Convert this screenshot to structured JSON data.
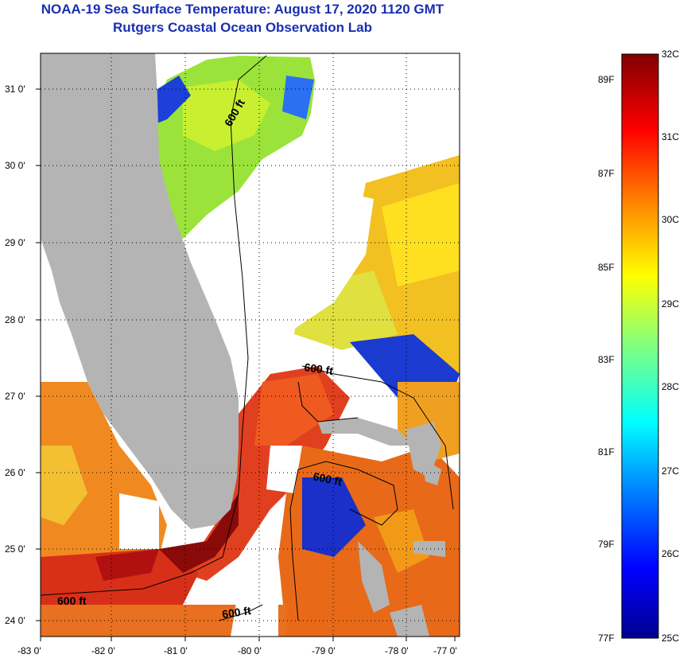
{
  "title": {
    "line1": "NOAA-19 Sea Surface Temperature:  August 17, 2020 1120 GMT",
    "line2": "Rutgers Coastal Ocean Observation Lab"
  },
  "map": {
    "lon_ticks": [
      "-83 0'",
      "-82 0'",
      "-81 0'",
      "-80 0'",
      "-79 0'",
      "-78 0'",
      "-77 0'"
    ],
    "lat_ticks": [
      "31 0'",
      "30 0'",
      "29 0'",
      "28 0'",
      "27 0'",
      "26 0'",
      "25 0'",
      "24 0'"
    ],
    "contour_labels": [
      "600 ft",
      "600 ft",
      "600 ft",
      "600 ft",
      "600 ft"
    ],
    "land_color": "#b4b4b4",
    "cloud_color": "#ffffff"
  },
  "colorbar": {
    "celsius": [
      "32C",
      "31C",
      "30C",
      "29C",
      "28C",
      "27C",
      "26C",
      "25C"
    ],
    "fahrenheit": [
      "89F",
      "87F",
      "85F",
      "83F",
      "81F",
      "79F",
      "77F"
    ],
    "min_c": 25,
    "max_c": 32,
    "stops": [
      "#000090",
      "#0000ff",
      "#0080ff",
      "#00ffff",
      "#80ff80",
      "#ffff00",
      "#ff8000",
      "#ff0000",
      "#800000"
    ]
  }
}
